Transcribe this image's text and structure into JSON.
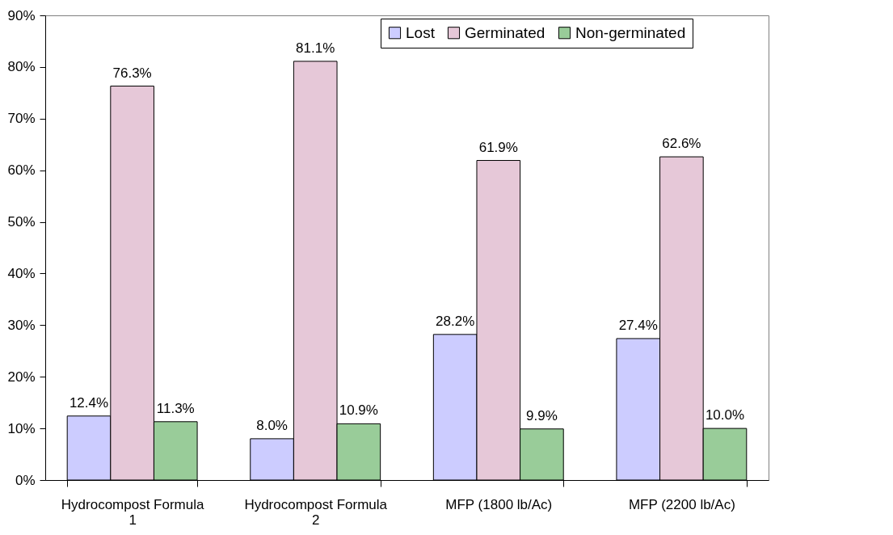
{
  "chart_data": {
    "type": "bar",
    "categories": [
      "Hydrocompost Formula 1",
      "Hydrocompost Formula 2",
      "MFP (1800 lb/Ac)",
      "MFP (2200 lb/Ac)"
    ],
    "series": [
      {
        "name": "Lost",
        "color": "#ccccff",
        "values": [
          12.4,
          8.0,
          28.2,
          27.4
        ],
        "value_labels": [
          "12.4%",
          "8.0%",
          "28.2%",
          "27.4%"
        ]
      },
      {
        "name": "Germinated",
        "color": "#e6c8d8",
        "values": [
          76.3,
          81.1,
          61.9,
          62.6
        ],
        "value_labels": [
          "76.3%",
          "81.1%",
          "61.9%",
          "62.6%"
        ]
      },
      {
        "name": "Non-germinated",
        "color": "#99cc99",
        "values": [
          11.3,
          10.9,
          9.9,
          10.0
        ],
        "value_labels": [
          "11.3%",
          "10.9%",
          "9.9%",
          "10.0%"
        ]
      }
    ],
    "ylim": [
      0,
      90
    ],
    "yticks": [
      {
        "value": 0,
        "label": "0%"
      },
      {
        "value": 10,
        "label": "10%"
      },
      {
        "value": 20,
        "label": "20%"
      },
      {
        "value": 30,
        "label": "30%"
      },
      {
        "value": 40,
        "label": "40%"
      },
      {
        "value": 50,
        "label": "50%"
      },
      {
        "value": 60,
        "label": "60%"
      },
      {
        "value": 70,
        "label": "70%"
      },
      {
        "value": 80,
        "label": "80%"
      },
      {
        "value": 90,
        "label": "90%"
      }
    ],
    "grid": false,
    "legend": "top right"
  }
}
